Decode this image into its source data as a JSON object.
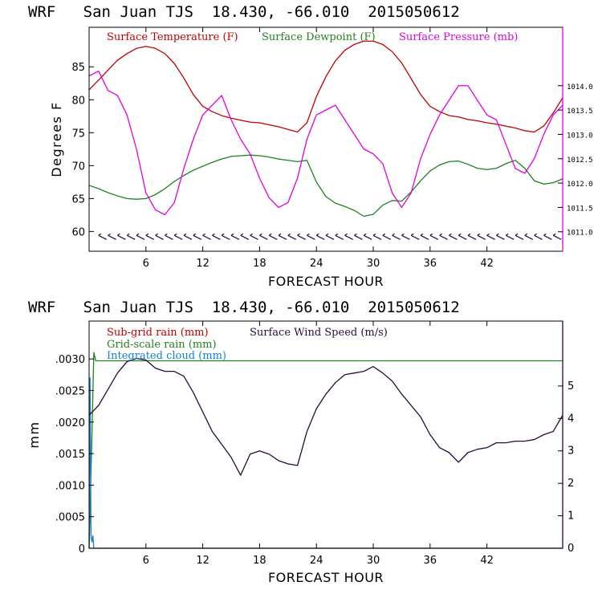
{
  "chart_data": [
    {
      "type": "line",
      "title": "WRF   San Juan TJS  18.430, -66.010  2015050612",
      "xlabel": "FORECAST HOUR",
      "ylabel": "Degrees F",
      "xlim": [
        0,
        50
      ],
      "ylim": [
        57,
        91
      ],
      "y2lim": [
        1010.6,
        1015.2
      ],
      "x_ticks": [
        6,
        12,
        18,
        24,
        30,
        36,
        42
      ],
      "y_ticks": [
        60,
        65,
        70,
        75,
        80,
        85
      ],
      "y2_ticks": [
        1011.0,
        1011.5,
        1012.0,
        1012.5,
        1013.0,
        1013.5,
        1014.0
      ],
      "y2_tick_labels": [
        "1011.0",
        "1011.5",
        "1012.0",
        "1012.5",
        "1013.0",
        "1013.5",
        "1014.0"
      ],
      "legend_position": "top",
      "series": [
        {
          "name": "Surface Temperature (F)",
          "color": "#c00000",
          "axis": "left",
          "x": [
            0,
            1,
            2,
            3,
            4,
            5,
            6,
            7,
            8,
            9,
            10,
            11,
            12,
            13,
            14,
            15,
            16,
            17,
            18,
            19,
            20,
            21,
            22,
            23,
            24,
            25,
            26,
            27,
            28,
            29,
            30,
            31,
            32,
            33,
            34,
            35,
            36,
            37,
            38,
            39,
            40,
            41,
            42,
            43,
            44,
            45,
            46,
            47,
            48,
            49,
            50
          ],
          "y": [
            81.5,
            83,
            84.5,
            86,
            87,
            87.8,
            88.1,
            87.8,
            87,
            85.5,
            83.3,
            80.8,
            79,
            78.2,
            77.6,
            77.2,
            76.9,
            76.6,
            76.5,
            76.2,
            75.9,
            75.5,
            75.1,
            76.5,
            80.5,
            83.5,
            85.9,
            87.5,
            88.4,
            88.9,
            88.9,
            88.4,
            87.3,
            85.6,
            83.2,
            80.8,
            79,
            78.2,
            77.6,
            77.4,
            77,
            76.8,
            76.5,
            76.3,
            76,
            75.7,
            75.3,
            75.1,
            76,
            78,
            80.3
          ]
        },
        {
          "name": "Surface Dewpoint (F)",
          "color": "#208020",
          "axis": "left",
          "x": [
            0,
            1,
            2,
            3,
            4,
            5,
            6,
            7,
            8,
            9,
            10,
            11,
            12,
            13,
            14,
            15,
            16,
            17,
            18,
            19,
            20,
            21,
            22,
            23,
            24,
            25,
            26,
            27,
            28,
            29,
            30,
            31,
            32,
            33,
            34,
            35,
            36,
            37,
            38,
            39,
            40,
            41,
            42,
            43,
            44,
            45,
            46,
            47,
            48,
            49,
            50
          ],
          "y": [
            67,
            66.5,
            65.9,
            65.4,
            65,
            64.9,
            65,
            65.6,
            66.5,
            67.6,
            68.5,
            69.3,
            69.9,
            70.5,
            71,
            71.4,
            71.5,
            71.6,
            71.5,
            71.3,
            71,
            70.8,
            70.6,
            70.8,
            67.5,
            65.3,
            64.3,
            63.8,
            63.2,
            62.3,
            62.6,
            64,
            64.7,
            64.6,
            66,
            67.7,
            69.2,
            70.1,
            70.6,
            70.7,
            70.2,
            69.6,
            69.4,
            69.6,
            70.3,
            70.8,
            69.6,
            67.7,
            67.2,
            67.4,
            68
          ]
        },
        {
          "name": "Surface Pressure (mb)",
          "color": "#e000e0",
          "axis": "right",
          "x": [
            0,
            1,
            2,
            3,
            4,
            5,
            6,
            7,
            8,
            9,
            10,
            11,
            12,
            13,
            14,
            15,
            16,
            17,
            18,
            19,
            20,
            21,
            22,
            23,
            24,
            25,
            26,
            27,
            28,
            29,
            30,
            31,
            32,
            33,
            34,
            35,
            36,
            37,
            38,
            39,
            40,
            41,
            42,
            43,
            44,
            45,
            46,
            47,
            48,
            49,
            50
          ],
          "y": [
            1014.2,
            1014.3,
            1013.9,
            1013.8,
            1013.4,
            1012.7,
            1011.8,
            1011.45,
            1011.35,
            1011.6,
            1012.3,
            1012.9,
            1013.4,
            1013.6,
            1013.8,
            1013.3,
            1012.9,
            1012.6,
            1012.1,
            1011.7,
            1011.5,
            1011.6,
            1012.1,
            1012.9,
            1013.4,
            1013.5,
            1013.6,
            1013.3,
            1013.0,
            1012.7,
            1012.6,
            1012.4,
            1011.8,
            1011.5,
            1011.8,
            1012.5,
            1013.0,
            1013.4,
            1013.7,
            1014.0,
            1014.0,
            1013.7,
            1013.4,
            1013.3,
            1012.8,
            1012.3,
            1012.2,
            1012.5,
            1013.0,
            1013.4,
            1013.6
          ]
        }
      ],
      "wind_barbs": true
    },
    {
      "type": "line",
      "title": "WRF   San Juan TJS  18.430, -66.010  2015050612",
      "xlabel": "FORECAST HOUR",
      "ylabel": "mm",
      "xlim": [
        0,
        50
      ],
      "ylim": [
        0,
        0.0036
      ],
      "y2lim": [
        0,
        7
      ],
      "x_ticks": [
        6,
        12,
        18,
        24,
        30,
        36,
        42
      ],
      "y_ticks": [
        0,
        0.0005,
        0.001,
        0.0015,
        0.002,
        0.0025,
        0.003
      ],
      "y_tick_labels": [
        "0",
        ".0005",
        ".0010",
        ".0015",
        ".0020",
        ".0025",
        ".0030"
      ],
      "y2_ticks": [
        0,
        1,
        2,
        3,
        4,
        5
      ],
      "y2_tick_labels": [
        "0",
        "1",
        "2",
        "3",
        "4",
        "5"
      ],
      "legend_position": "top-left",
      "series": [
        {
          "name": "Sub-grid rain (mm)",
          "color": "#c00000",
          "axis": "left",
          "x": [
            0,
            50
          ],
          "y": [
            0,
            0
          ]
        },
        {
          "name": "Grid-scale rain (mm)",
          "color": "#208020",
          "axis": "left",
          "x": [
            0,
            0.3,
            0.5,
            0.7,
            50
          ],
          "y": [
            0,
            0.0018,
            0.0031,
            0.00297,
            0.00297
          ]
        },
        {
          "name": "Integrated cloud (mm)",
          "color": "#1080e0",
          "axis": "left",
          "x": [
            0,
            0.1,
            0.2,
            0.3,
            0.4,
            0.5,
            50
          ],
          "y": [
            0,
            0.0027,
            0.0002,
            0.0001,
            0.0002,
            0,
            0
          ]
        },
        {
          "name": "Surface Wind Speed (m/s)",
          "color": "#2a0a3a",
          "axis": "right",
          "x": [
            0,
            1,
            2,
            3,
            4,
            5,
            6,
            7,
            8,
            9,
            10,
            11,
            12,
            13,
            14,
            15,
            16,
            17,
            18,
            19,
            20,
            21,
            22,
            23,
            24,
            25,
            26,
            27,
            28,
            29,
            30,
            31,
            32,
            33,
            34,
            35,
            36,
            37,
            38,
            39,
            40,
            41,
            42,
            43,
            44,
            45,
            46,
            47,
            48,
            49,
            50
          ],
          "y": [
            4.1,
            4.4,
            4.9,
            5.4,
            5.75,
            5.85,
            5.8,
            5.55,
            5.45,
            5.45,
            5.3,
            4.8,
            4.2,
            3.6,
            3.2,
            2.8,
            2.25,
            2.9,
            3.0,
            2.9,
            2.7,
            2.6,
            2.55,
            3.6,
            4.3,
            4.75,
            5.1,
            5.35,
            5.4,
            5.45,
            5.6,
            5.4,
            5.15,
            4.75,
            4.4,
            4.05,
            3.5,
            3.1,
            2.95,
            2.65,
            2.95,
            3.05,
            3.1,
            3.25,
            3.25,
            3.3,
            3.3,
            3.35,
            3.5,
            3.6,
            4.1
          ]
        }
      ]
    }
  ]
}
